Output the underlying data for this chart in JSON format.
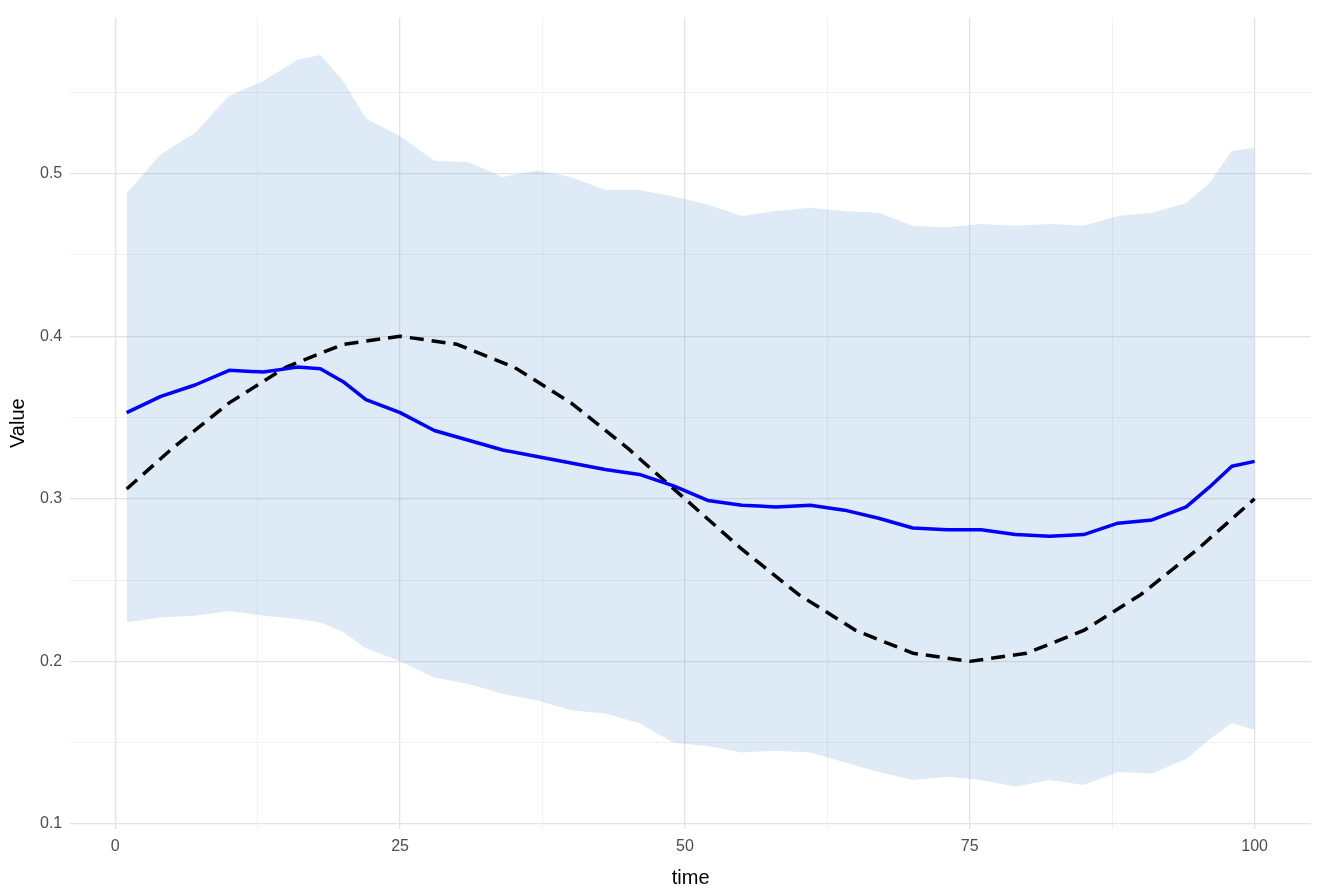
{
  "chart_data": {
    "type": "line",
    "xlabel": "time",
    "ylabel": "Value",
    "xlim": [
      -3.95,
      104.95
    ],
    "ylim": [
      0.097,
      0.596
    ],
    "xticks": [
      0,
      {
        "value": 12.5,
        "label": null
      },
      25,
      {
        "value": 37.5,
        "label": null
      },
      50,
      {
        "value": 62.5,
        "label": null
      },
      75,
      {
        "value": 87.5,
        "label": null
      },
      100
    ],
    "yticks": [
      0.1,
      {
        "value": 0.15,
        "label": null
      },
      0.2,
      {
        "value": 0.25,
        "label": null
      },
      0.3,
      {
        "value": 0.35,
        "label": null
      },
      0.4,
      {
        "value": 0.45,
        "label": null
      },
      0.5,
      {
        "value": 0.55,
        "label": null
      }
    ],
    "grid": true,
    "legend": false,
    "marker": "none",
    "series": [
      {
        "color": "#0000ff",
        "line_style": "solid",
        "x": [
          1,
          4,
          7,
          10,
          13,
          16,
          18,
          20,
          22,
          25,
          28,
          31,
          34,
          37,
          40,
          43,
          46,
          49,
          52,
          55,
          58,
          61,
          64,
          67,
          70,
          73,
          76,
          79,
          82,
          85,
          88,
          91,
          94,
          96,
          98,
          100
        ],
        "values": [
          0.353,
          0.363,
          0.37,
          0.379,
          0.378,
          0.381,
          0.38,
          0.372,
          0.361,
          0.353,
          0.342,
          0.336,
          0.33,
          0.326,
          0.322,
          0.318,
          0.315,
          0.308,
          0.299,
          0.296,
          0.295,
          0.296,
          0.293,
          0.288,
          0.282,
          0.281,
          0.281,
          0.278,
          0.277,
          0.278,
          0.285,
          0.287,
          0.295,
          0.307,
          0.32,
          0.323
        ],
        "lower": [
          0.224,
          0.227,
          0.228,
          0.231,
          0.228,
          0.226,
          0.224,
          0.218,
          0.208,
          0.2,
          0.19,
          0.186,
          0.18,
          0.176,
          0.17,
          0.168,
          0.162,
          0.15,
          0.148,
          0.144,
          0.145,
          0.144,
          0.138,
          0.132,
          0.127,
          0.129,
          0.127,
          0.123,
          0.127,
          0.124,
          0.132,
          0.131,
          0.14,
          0.152,
          0.162,
          0.158
        ],
        "upper": [
          0.488,
          0.512,
          0.525,
          0.548,
          0.557,
          0.57,
          0.573,
          0.557,
          0.534,
          0.523,
          0.508,
          0.507,
          0.498,
          0.502,
          0.498,
          0.49,
          0.49,
          0.486,
          0.481,
          0.474,
          0.477,
          0.479,
          0.477,
          0.476,
          0.468,
          0.467,
          0.469,
          0.468,
          0.469,
          0.468,
          0.474,
          0.476,
          0.482,
          0.494,
          0.514,
          0.516
        ]
      },
      {
        "color": "#000000",
        "line_style": "dashed",
        "x": [
          1,
          5,
          10,
          15,
          20,
          25,
          30,
          35,
          40,
          45,
          50,
          55,
          60,
          65,
          70,
          75,
          80,
          85,
          90,
          95,
          100
        ],
        "values": [
          0.306,
          0.331,
          0.359,
          0.381,
          0.395,
          0.4,
          0.395,
          0.381,
          0.359,
          0.331,
          0.3,
          0.269,
          0.241,
          0.219,
          0.205,
          0.2,
          0.205,
          0.219,
          0.241,
          0.269,
          0.3
        ]
      }
    ]
  }
}
